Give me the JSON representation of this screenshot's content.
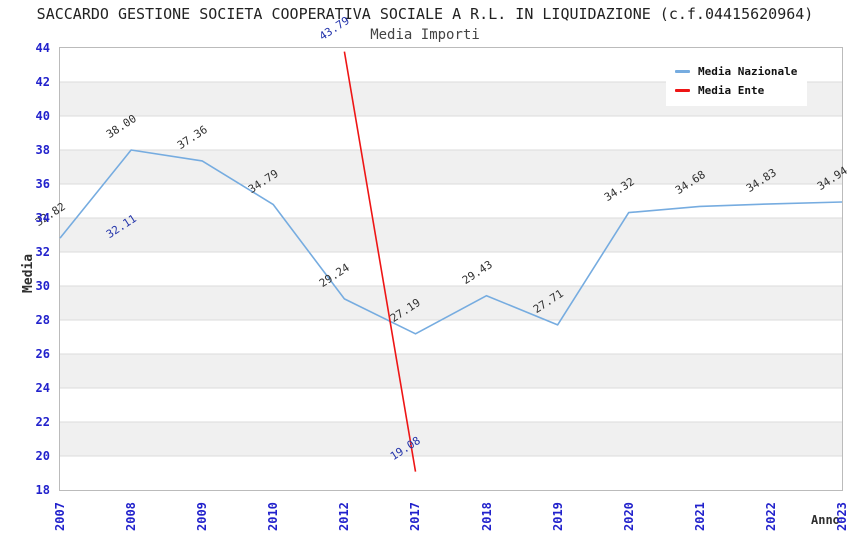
{
  "chart_data": {
    "type": "line",
    "title": "SACCARDO GESTIONE SOCIETA COOPERATIVA SOCIALE A R.L. IN LIQUIDAZIONE (c.f.04415620964)",
    "subtitle": "Media Importi",
    "xlabel": "Anno",
    "ylabel": "Media",
    "categories": [
      "2007",
      "2008",
      "2009",
      "2010",
      "2012",
      "2017",
      "2018",
      "2019",
      "2020",
      "2021",
      "2022",
      "2023"
    ],
    "ylim": [
      18,
      44
    ],
    "ytick_step": 2,
    "grid": "horizontal gridlines with alternating shaded bands",
    "legend_position": "top-right",
    "series": [
      {
        "name": "Media Nazionale",
        "color": "#76ACE0",
        "label_color": "#303030",
        "values": [
          32.82,
          38.0,
          37.36,
          34.79,
          29.24,
          27.19,
          29.43,
          27.71,
          34.32,
          34.68,
          34.83,
          34.94
        ]
      },
      {
        "name": "Media Ente",
        "color": "#EE1515",
        "label_color": "#2233AA",
        "values": [
          null,
          32.11,
          null,
          null,
          43.79,
          19.08,
          null,
          null,
          null,
          null,
          null,
          null
        ]
      }
    ]
  },
  "colors": {
    "tick_label": "#2222CC",
    "band": "#F0F0F0",
    "gridline": "#DBDBDB",
    "plot_border": "#BBBBBB",
    "title_color": "#222222",
    "subtitle_color": "#444444",
    "axis_title_color": "#303030"
  }
}
